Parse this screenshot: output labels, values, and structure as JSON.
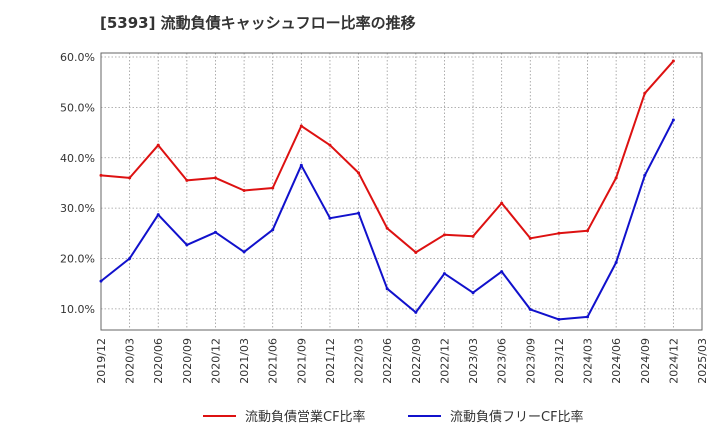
{
  "chart_data": {
    "type": "line",
    "title": "[5393]  流動負債キャッシュフロー比率の推移",
    "x": [
      "2019/12",
      "2020/03",
      "2020/06",
      "2020/09",
      "2020/12",
      "2021/03",
      "2021/06",
      "2021/09",
      "2021/12",
      "2022/03",
      "2022/06",
      "2022/09",
      "2022/12",
      "2023/03",
      "2023/06",
      "2023/09",
      "2023/12",
      "2024/03",
      "2024/06",
      "2024/09",
      "2024/12",
      "2025/03"
    ],
    "y_ticks": [
      "10.0%",
      "20.0%",
      "30.0%",
      "40.0%",
      "50.0%",
      "60.0%"
    ],
    "ylim": [
      5.8,
      60.8
    ],
    "grid": true,
    "legend_position": "bottom",
    "series": [
      {
        "name": "流動負債営業CF比率",
        "color": "#dd1111",
        "values": [
          36.5,
          36.0,
          42.5,
          35.5,
          36.0,
          33.5,
          34.0,
          46.3,
          42.5,
          37.0,
          26.0,
          21.2,
          24.7,
          24.4,
          31.0,
          24.0,
          25.0,
          25.5,
          36.0,
          52.8,
          59.2,
          null
        ]
      },
      {
        "name": "流動負債フリーCF比率",
        "color": "#1111cc",
        "values": [
          15.5,
          20.0,
          28.7,
          22.7,
          25.2,
          21.3,
          25.7,
          38.5,
          28.0,
          29.0,
          14.0,
          9.3,
          17.0,
          13.2,
          17.4,
          9.9,
          7.9,
          8.4,
          19.2,
          36.5,
          47.5,
          null
        ]
      }
    ]
  }
}
